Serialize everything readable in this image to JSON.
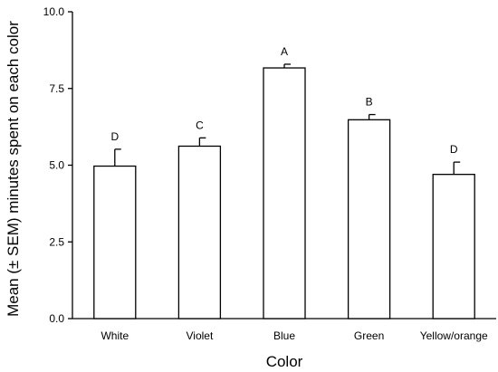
{
  "chart_data": {
    "type": "bar",
    "xlabel": "Color",
    "ylabel": "Mean (± SEM) minutes spent on each color",
    "categories": [
      "White",
      "Violet",
      "Blue",
      "Green",
      "Yellow/orange"
    ],
    "values": [
      4.97,
      5.62,
      8.17,
      6.48,
      4.7
    ],
    "sem": [
      0.55,
      0.27,
      0.12,
      0.17,
      0.4
    ],
    "significance_labels": [
      "D",
      "C",
      "A",
      "B",
      "D"
    ],
    "ylim": [
      0,
      10
    ],
    "yticks": [
      0.0,
      2.5,
      5.0,
      7.5,
      10.0
    ],
    "ytick_labels": [
      "0.0",
      "2.5",
      "5.0",
      "7.5",
      "10.0"
    ],
    "grid": false,
    "bar_color": "#ffffff",
    "line_color": "#000000"
  }
}
